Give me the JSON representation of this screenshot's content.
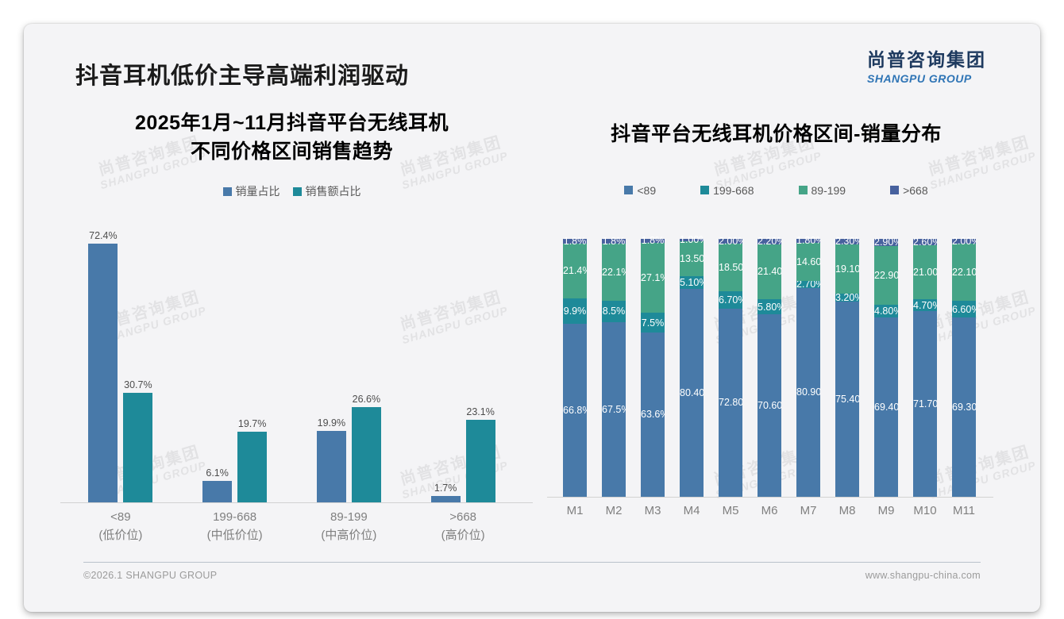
{
  "header": {
    "title": "抖音耳机低价主导高端利润驱动",
    "logo_cn": "尚普咨询集团",
    "logo_en": "SHANGPU GROUP"
  },
  "watermark": {
    "line1": "尚普咨询集团",
    "line2": "SHANGPU GROUP"
  },
  "footer": {
    "left": "©2026.1 SHANGPU GROUP",
    "right": "www.shangpu-china.com"
  },
  "colors": {
    "steel_blue": "#4879A9",
    "teal": "#1E8A99",
    "green": "#45A487",
    "dark_blue": "#47619E"
  },
  "chart_data": [
    {
      "type": "bar",
      "title_line1": "2025年1月~11月抖音平台无线耳机",
      "title_line2": "不同价格区间销售趋势",
      "legend_position": "top",
      "grid": false,
      "ylim": [
        0,
        80
      ],
      "value_suffix": "%",
      "categories": [
        [
          "<89",
          "(低价位)"
        ],
        [
          "199-668",
          "(中低价位)"
        ],
        [
          "89-199",
          "(中高价位)"
        ],
        [
          ">668",
          "(高价位)"
        ]
      ],
      "series": [
        {
          "name": "销量占比",
          "color": "#4879A9",
          "values": [
            72.4,
            6.1,
            19.9,
            1.7
          ],
          "labels": [
            "72.4%",
            "6.1%",
            "19.9%",
            "1.7%"
          ]
        },
        {
          "name": "销售额占比",
          "color": "#1E8A99",
          "values": [
            30.7,
            19.7,
            26.6,
            23.1
          ],
          "labels": [
            "30.7%",
            "19.7%",
            "26.6%",
            "23.1%"
          ]
        }
      ]
    },
    {
      "type": "stacked-bar",
      "title": "抖音平台无线耳机价格区间-销量分布",
      "legend_position": "top",
      "grid": false,
      "ylim": [
        0,
        100
      ],
      "value_suffix": "%",
      "categories": [
        "M1",
        "M2",
        "M3",
        "M4",
        "M5",
        "M6",
        "M7",
        "M8",
        "M9",
        "M10",
        "M11"
      ],
      "series": [
        {
          "name": "<89",
          "color": "#4879A9",
          "values": [
            66.8,
            67.5,
            63.6,
            80.4,
            72.8,
            70.6,
            80.9,
            75.4,
            69.4,
            71.7,
            69.3
          ],
          "labels": [
            "66.8%",
            "67.5%",
            "63.6%",
            "80.40%",
            "72.80%",
            "70.60%",
            "80.90%",
            "75.40%",
            "69.40%",
            "71.70%",
            "69.30%"
          ]
        },
        {
          "name": "199-668",
          "color": "#1E8A99",
          "values": [
            9.9,
            8.5,
            7.5,
            5.1,
            6.7,
            5.8,
            2.7,
            3.2,
            4.8,
            4.7,
            6.6
          ],
          "labels": [
            "9.9%",
            "8.5%",
            "7.5%",
            "5.10%",
            "6.70%",
            "5.80%",
            "2.70%",
            "3.20%",
            "4.80%",
            "4.70%",
            "6.60%"
          ]
        },
        {
          "name": "89-199",
          "color": "#45A487",
          "values": [
            21.4,
            22.1,
            27.1,
            13.5,
            18.5,
            21.4,
            14.6,
            19.1,
            22.9,
            21.0,
            22.1
          ],
          "labels": [
            "21.4%",
            "22.1%",
            "27.1%",
            "13.50%",
            "18.50%",
            "21.40%",
            "14.60%",
            "19.10%",
            "22.90%",
            "21.00%",
            "22.10%"
          ]
        },
        {
          "name": ">668",
          "color": "#47619E",
          "values": [
            1.8,
            1.8,
            1.8,
            1.0,
            2.0,
            2.2,
            1.8,
            2.3,
            2.9,
            2.6,
            2.0
          ],
          "labels": [
            "1.8%",
            "1.8%",
            "1.8%",
            "1.00%",
            "2.00%",
            "2.20%",
            "1.80%",
            "2.30%",
            "2.90%",
            "2.60%",
            "2.00%"
          ]
        }
      ]
    }
  ]
}
